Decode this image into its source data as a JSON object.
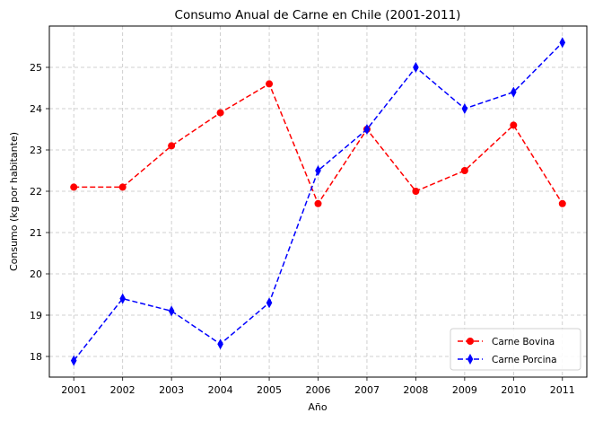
{
  "chart_data": {
    "type": "line",
    "title": "Consumo Anual de Carne en Chile (2001-2011)",
    "xlabel": "Año",
    "ylabel": "Consumo (kg por habitante)",
    "x": [
      2001,
      2002,
      2003,
      2004,
      2005,
      2006,
      2007,
      2008,
      2009,
      2010,
      2011
    ],
    "xticks": [
      "2001",
      "2002",
      "2003",
      "2004",
      "2005",
      "2006",
      "2007",
      "2008",
      "2009",
      "2010",
      "2011"
    ],
    "yticks": [
      "18",
      "19",
      "20",
      "21",
      "22",
      "23",
      "24",
      "25"
    ],
    "xlim": [
      2000.5,
      2011.5
    ],
    "ylim": [
      17.5,
      26.0
    ],
    "grid": true,
    "legend_position": "lower-right",
    "series": [
      {
        "name": "Carne Bovina",
        "color": "#ff0000",
        "marker": "circle",
        "linestyle": "dashed",
        "values": [
          22.1,
          22.1,
          23.1,
          23.9,
          24.6,
          21.7,
          23.5,
          22.0,
          22.5,
          23.6,
          21.7
        ]
      },
      {
        "name": "Carne Porcina",
        "color": "#0000ff",
        "marker": "thin-diamond",
        "linestyle": "dashed",
        "values": [
          17.9,
          19.4,
          19.1,
          18.3,
          19.3,
          22.5,
          23.5,
          25.0,
          24.0,
          24.4,
          25.6
        ]
      }
    ]
  }
}
